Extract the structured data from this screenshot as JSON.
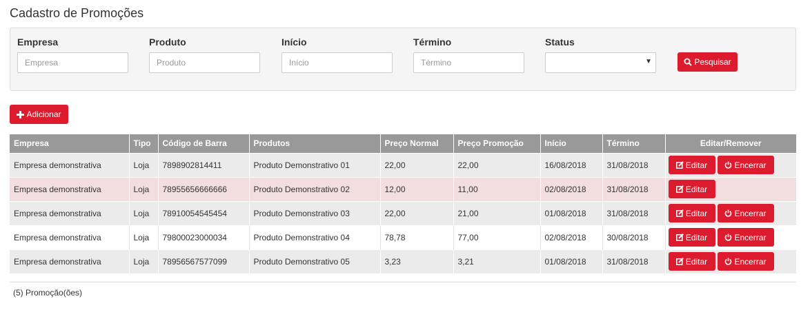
{
  "page": {
    "title": "Cadastro de Promoções"
  },
  "filters": {
    "empresa": {
      "label": "Empresa",
      "placeholder": "Empresa"
    },
    "produto": {
      "label": "Produto",
      "placeholder": "Produto"
    },
    "inicio": {
      "label": "Início",
      "placeholder": "Início"
    },
    "termino": {
      "label": "Término",
      "placeholder": "Término"
    },
    "status": {
      "label": "Status",
      "value": ""
    },
    "search_label": "Pesquisar",
    "search_icon": "search-icon"
  },
  "toolbar": {
    "add_label": "Adicionar",
    "add_icon": "plus-icon"
  },
  "table": {
    "columns": [
      "Empresa",
      "Tipo",
      "Código de Barra",
      "Produtos",
      "Preço Normal",
      "Preço Promoção",
      "Início",
      "Término",
      "Editar/Remover"
    ],
    "edit_label": "Editar",
    "end_label": "Encerrar",
    "rows": [
      {
        "empresa": "Empresa demonstrativa",
        "tipo": "Loja",
        "codigo": "7898902814411",
        "produto": "Produto Demonstrativo 01",
        "preco_normal": "22,00",
        "preco_promocao": "22,00",
        "inicio": "16/08/2018",
        "termino": "31/08/2018",
        "can_end": true
      },
      {
        "empresa": "Empresa demonstrativa",
        "tipo": "Loja",
        "codigo": "78955656666666",
        "produto": "Produto Demonstrativo 02",
        "preco_normal": "12,00",
        "preco_promocao": "11,00",
        "inicio": "02/08/2018",
        "termino": "31/08/2018",
        "can_end": false
      },
      {
        "empresa": "Empresa demonstrativa",
        "tipo": "Loja",
        "codigo": "78910054545454",
        "produto": "Produto Demonstrativo 03",
        "preco_normal": "22,00",
        "preco_promocao": "21,00",
        "inicio": "01/08/2018",
        "termino": "31/08/2018",
        "can_end": true
      },
      {
        "empresa": "Empresa demonstrativa",
        "tipo": "Loja",
        "codigo": "79800023000034",
        "produto": "Produto Demonstrativo 04",
        "preco_normal": "78,78",
        "preco_promocao": "77,00",
        "inicio": "02/08/2018",
        "termino": "30/08/2018",
        "can_end": true
      },
      {
        "empresa": "Empresa demonstrativa",
        "tipo": "Loja",
        "codigo": "78956567577099",
        "produto": "Produto Demonstrativo 05",
        "preco_normal": "3,23",
        "preco_promocao": "3,21",
        "inicio": "01/08/2018",
        "termino": "31/08/2018",
        "can_end": true
      }
    ]
  },
  "footer": {
    "count_text": "(5) Promoção(ões)"
  },
  "colors": {
    "accent": "#dc1c2e",
    "header_bg": "#999999",
    "row_gray": "#ebebeb",
    "row_pink": "#f2dede"
  }
}
